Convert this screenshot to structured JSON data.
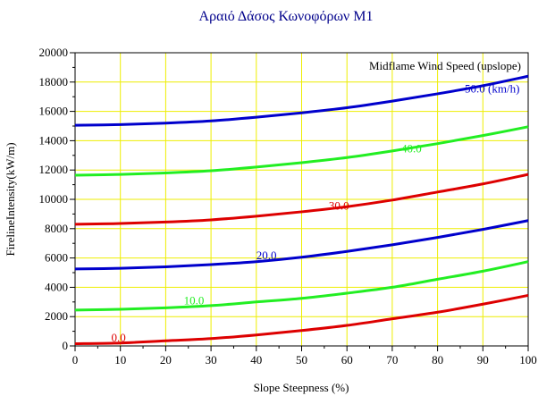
{
  "chart_data": {
    "type": "line",
    "title": "Αραιό Δάσος Κωνοφόρων Μ1",
    "xlabel": "Slope Steepness (%)",
    "ylabel": "FirelineIntensity(kW/m)",
    "xlim": [
      0,
      100
    ],
    "ylim": [
      0,
      20000
    ],
    "x_ticks": [
      "0",
      "10",
      "20",
      "30",
      "40",
      "50",
      "60",
      "70",
      "80",
      "90",
      "100"
    ],
    "y_ticks": [
      "0",
      "2000",
      "4000",
      "6000",
      "8000",
      "10000",
      "12000",
      "14000",
      "16000",
      "18000",
      "20000"
    ],
    "grid": true,
    "legend_title": "Midflame Wind Speed (upslope)",
    "x": [
      0,
      10,
      20,
      30,
      40,
      50,
      60,
      70,
      80,
      90,
      100
    ],
    "series": [
      {
        "name": "0.0",
        "color": "#dd0000",
        "label": "0.0",
        "label_at": [
          8,
          300
        ],
        "values": [
          150,
          200,
          350,
          500,
          750,
          1050,
          1400,
          1850,
          2300,
          2850,
          3450
        ]
      },
      {
        "name": "10.0",
        "color": "#22ee22",
        "label": "10.0",
        "label_at": [
          24,
          2850
        ],
        "values": [
          2450,
          2500,
          2600,
          2750,
          3000,
          3250,
          3600,
          4000,
          4550,
          5100,
          5750
        ]
      },
      {
        "name": "20.0",
        "color": "#0000cc",
        "label": "20.0",
        "label_at": [
          40,
          5900
        ],
        "values": [
          5250,
          5300,
          5400,
          5550,
          5750,
          6050,
          6450,
          6900,
          7400,
          7950,
          8550
        ]
      },
      {
        "name": "30.0",
        "color": "#dd0000",
        "label": "30.0",
        "label_at": [
          56,
          9300
        ],
        "values": [
          8300,
          8350,
          8450,
          8600,
          8850,
          9150,
          9500,
          9950,
          10500,
          11050,
          11700
        ]
      },
      {
        "name": "40.0",
        "color": "#22ee22",
        "label": "40.0",
        "label_at": [
          72,
          13200
        ],
        "values": [
          11650,
          11700,
          11800,
          11950,
          12200,
          12500,
          12850,
          13300,
          13800,
          14350,
          14950
        ]
      },
      {
        "name": "50.0 (km/h)",
        "color": "#0000cc",
        "label": "50.0 (km/h)",
        "label_at": [
          86,
          17300
        ],
        "values": [
          15050,
          15100,
          15200,
          15350,
          15600,
          15900,
          16250,
          16700,
          17200,
          17750,
          18400
        ]
      }
    ]
  }
}
